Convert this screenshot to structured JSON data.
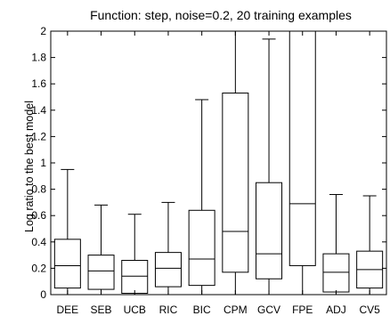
{
  "chart_data": {
    "type": "boxplot",
    "title": "Function: step, noise=0.2, 20 training examples",
    "xlabel": "",
    "ylabel": "Log ratio to the best model",
    "ylim": [
      0,
      2
    ],
    "y_ticks": [
      "0",
      "0.2",
      "0.4",
      "0.6",
      "0.8",
      "1",
      "1.2",
      "1.4",
      "1.6",
      "1.8",
      "2"
    ],
    "categories": [
      "DEE",
      "SEB",
      "UCB",
      "RIC",
      "BIC",
      "CPM",
      "GCV",
      "FPE",
      "ADJ",
      "CV5"
    ],
    "boxes": [
      {
        "label": "DEE",
        "whisker_low": 0.0,
        "q1": 0.05,
        "median": 0.22,
        "q3": 0.42,
        "whisker_high": 0.95
      },
      {
        "label": "SEB",
        "whisker_low": 0.0,
        "q1": 0.04,
        "median": 0.18,
        "q3": 0.3,
        "whisker_high": 0.68
      },
      {
        "label": "UCB",
        "whisker_low": 0.0,
        "q1": 0.01,
        "median": 0.14,
        "q3": 0.26,
        "whisker_high": 0.61
      },
      {
        "label": "RIC",
        "whisker_low": 0.0,
        "q1": 0.06,
        "median": 0.2,
        "q3": 0.32,
        "whisker_high": 0.7
      },
      {
        "label": "BIC",
        "whisker_low": 0.0,
        "q1": 0.07,
        "median": 0.27,
        "q3": 0.64,
        "whisker_high": 1.48
      },
      {
        "label": "CPM",
        "whisker_low": 0.0,
        "q1": 0.17,
        "median": 0.48,
        "q3": 1.53,
        "whisker_high": 2.0
      },
      {
        "label": "GCV",
        "whisker_low": 0.0,
        "q1": 0.12,
        "median": 0.31,
        "q3": 0.85,
        "whisker_high": 1.94
      },
      {
        "label": "FPE",
        "whisker_low": 0.0,
        "q1": 0.22,
        "median": 0.69,
        "q3": 2.0,
        "whisker_high": 2.0
      },
      {
        "label": "ADJ",
        "whisker_low": 0.0,
        "q1": 0.02,
        "median": 0.17,
        "q3": 0.31,
        "whisker_high": 0.76
      },
      {
        "label": "CV5",
        "whisker_low": 0.0,
        "q1": 0.05,
        "median": 0.19,
        "q3": 0.33,
        "whisker_high": 0.75
      }
    ],
    "grid": false,
    "legend": "none"
  },
  "colors": {
    "line": "#000000",
    "background": "#ffffff"
  }
}
